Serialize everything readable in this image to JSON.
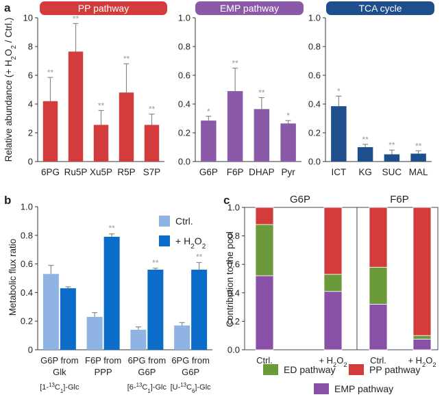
{
  "panel_letters": [
    "a",
    "b",
    "c"
  ],
  "colors": {
    "pp": "#d23c3c",
    "emp": "#8a5aa8",
    "tca": "#1f4e8c",
    "ctrl": "#8fb4e3",
    "h2o2": "#0b6dc9",
    "ed": "#6a9a3a",
    "pp_path": "#d23c3c",
    "emp_path": "#8a4fa6",
    "sig": "#999999",
    "err": "#888888"
  },
  "chart_data": [
    {
      "id": "a1",
      "type": "bar",
      "title": "PP pathway",
      "color_key": "pp",
      "ylabel": "Relative abundance (+ H2O2 / Ctrl.)",
      "ylabel_parts": [
        "Relative abundance (+ H",
        "2",
        "O",
        "2",
        " / Ctrl.)"
      ],
      "ylim": [
        0,
        10
      ],
      "yticks": [
        "0",
        "2",
        "4",
        "6",
        "8",
        "10"
      ],
      "categories": [
        "6PG",
        "Ru5P",
        "Xu5P",
        "R5P",
        "S7P"
      ],
      "values": [
        4.2,
        7.65,
        2.55,
        4.8,
        2.55
      ],
      "errors": [
        1.65,
        1.95,
        1.0,
        2.0,
        0.75
      ],
      "sig": [
        "**",
        "**",
        "**",
        "**",
        "**"
      ]
    },
    {
      "id": "a2",
      "type": "bar",
      "title": "EMP pathway",
      "color_key": "emp",
      "ylim": [
        0,
        1.0
      ],
      "yticks": [
        "0.0",
        "0.2",
        "0.4",
        "0.6",
        "0.8",
        "1.0"
      ],
      "categories": [
        "G6P",
        "F6P",
        "DHAP",
        "Pyr"
      ],
      "values": [
        0.285,
        0.49,
        0.365,
        0.265
      ],
      "errors": [
        0.03,
        0.16,
        0.08,
        0.02
      ],
      "sig": [
        "*",
        "**",
        "**",
        "*"
      ]
    },
    {
      "id": "a3",
      "type": "bar",
      "title": "TCA cycle",
      "color_key": "tca",
      "ylim": [
        0,
        1.0
      ],
      "yticks": [
        "0.0",
        "0.2",
        "0.4",
        "0.6",
        "0.8",
        "1.0"
      ],
      "categories": [
        "ICT",
        "KG",
        "SUC",
        "MAL"
      ],
      "values": [
        0.385,
        0.1,
        0.05,
        0.055
      ],
      "errors": [
        0.07,
        0.02,
        0.03,
        0.02
      ],
      "sig": [
        "*",
        "**",
        "**",
        "**"
      ]
    },
    {
      "id": "b",
      "type": "bar",
      "ylabel": "Metabolic flux ratio",
      "ylim": [
        0,
        1.0
      ],
      "yticks": [
        "0",
        "0.2",
        "0.4",
        "0.6",
        "0.8",
        "1.0"
      ],
      "categories": [
        {
          "line1": "G6P from",
          "line2": "Glk",
          "tracer_parts": [
            "[1-",
            "13",
            "C",
            "1",
            "]-Glc"
          ]
        },
        {
          "line1": "F6P from",
          "line2": "PPP",
          "tracer_parts": []
        },
        {
          "line1": "6PG from",
          "line2": "G6P",
          "tracer_parts": [
            "[6-",
            "13",
            "C",
            "1",
            "]-Glc"
          ]
        },
        {
          "line1": "6PG from",
          "line2": "G6P",
          "tracer_parts": [
            "[U-",
            "13",
            "C",
            "6",
            "]-Glc"
          ]
        }
      ],
      "series": [
        {
          "name": "Ctrl.",
          "color_key": "ctrl",
          "values": [
            0.53,
            0.23,
            0.14,
            0.17
          ],
          "errors": [
            0.06,
            0.03,
            0.02,
            0.02
          ],
          "sig": [
            "",
            "",
            "",
            ""
          ]
        },
        {
          "name": "+ H2O2",
          "name_parts": [
            "+ H",
            "2",
            "O",
            "2"
          ],
          "color_key": "h2o2",
          "values": [
            0.43,
            0.79,
            0.56,
            0.56
          ],
          "errors": [
            0.01,
            0.02,
            0.01,
            0.05
          ],
          "sig": [
            "",
            "**",
            "**",
            "**"
          ]
        }
      ],
      "legend": "top-right"
    },
    {
      "id": "c",
      "type": "stacked-bar",
      "ylabel": "Contribution to the pool",
      "ylim": [
        0,
        1.0
      ],
      "yticks": [
        "0.0",
        "0.2",
        "0.4",
        "0.6",
        "0.8",
        "1.0"
      ],
      "groups": [
        "G6P",
        "F6P"
      ],
      "categories": [
        {
          "group": "G6P",
          "label_parts": [
            "Ctrl."
          ],
          "emp": 0.52,
          "ed": 0.36,
          "pp": 0.12
        },
        {
          "group": "G6P",
          "label_parts": [
            "+ H",
            "2",
            "O",
            "2"
          ],
          "emp": 0.41,
          "ed": 0.12,
          "pp": 0.47
        },
        {
          "group": "F6P",
          "label_parts": [
            "Ctrl."
          ],
          "emp": 0.32,
          "ed": 0.26,
          "pp": 0.42
        },
        {
          "group": "F6P",
          "label_parts": [
            "+ H",
            "2",
            "O",
            "2"
          ],
          "emp": 0.075,
          "ed": 0.025,
          "pp": 0.9
        }
      ],
      "legend": [
        {
          "name": "ED pathway",
          "color_key": "ed"
        },
        {
          "name": "PP pathway",
          "color_key": "pp_path"
        },
        {
          "name": "EMP pathway",
          "color_key": "emp_path"
        }
      ]
    }
  ]
}
